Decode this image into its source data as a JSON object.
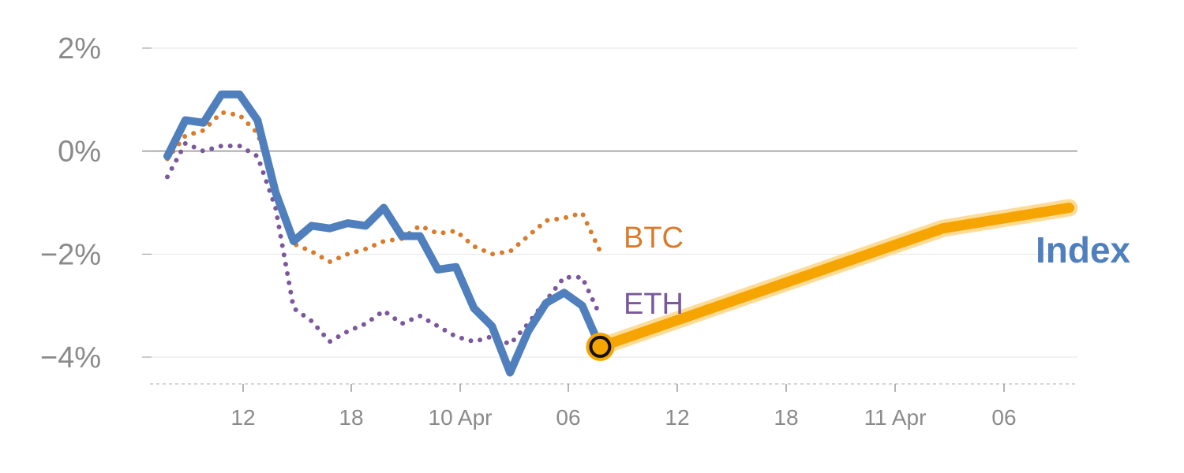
{
  "chart_data": {
    "type": "line",
    "title": "",
    "xlabel": "",
    "ylabel": "",
    "ylim": [
      -4.5,
      2
    ],
    "y_ticks": [
      2,
      0,
      -2,
      -4
    ],
    "y_tick_labels": [
      "2%",
      "0%",
      "−2%",
      "−4%"
    ],
    "x_tick_labels": [
      "12",
      "18",
      "10 Apr",
      "06",
      "12",
      "18",
      "11 Apr",
      "06"
    ],
    "grid": true,
    "zero_line": true,
    "series": [
      {
        "name": "Index",
        "style": "solid",
        "color": "#4f7fbd",
        "values": [
          -0.1,
          0.6,
          0.55,
          1.1,
          1.1,
          0.6,
          -0.8,
          -1.75,
          -1.45,
          -1.5,
          -1.4,
          -1.45,
          -1.1,
          -1.65,
          -1.65,
          -2.3,
          -2.25,
          -3.05,
          -3.4,
          -4.3,
          -3.5,
          -2.95,
          -2.75,
          -3.0,
          -3.8
        ]
      },
      {
        "name": "BTC",
        "style": "dotted",
        "color": "#d97b2b",
        "values": [
          -0.15,
          0.3,
          0.4,
          0.75,
          0.7,
          0.35,
          -0.7,
          -1.8,
          -1.95,
          -2.15,
          -2.0,
          -1.9,
          -1.75,
          -1.7,
          -1.45,
          -1.6,
          -1.55,
          -1.85,
          -2.0,
          -1.95,
          -1.65,
          -1.35,
          -1.3,
          -1.2,
          -1.95
        ]
      },
      {
        "name": "ETH",
        "style": "dotted",
        "color": "#7b579c",
        "values": [
          -0.5,
          0.15,
          0.0,
          0.1,
          0.1,
          -0.1,
          -1.1,
          -3.05,
          -3.3,
          -3.7,
          -3.5,
          -3.35,
          -3.1,
          -3.35,
          -3.2,
          -3.4,
          -3.6,
          -3.7,
          -3.6,
          -3.75,
          -3.35,
          -2.9,
          -2.45,
          -2.45,
          -3.2
        ]
      }
    ],
    "projection": {
      "color": "#f6a500",
      "points": [
        [
          24,
          -3.8
        ],
        [
          43,
          -1.5
        ],
        [
          50,
          -1.1
        ]
      ]
    },
    "marker": {
      "index": 24,
      "value": -3.8
    }
  }
}
